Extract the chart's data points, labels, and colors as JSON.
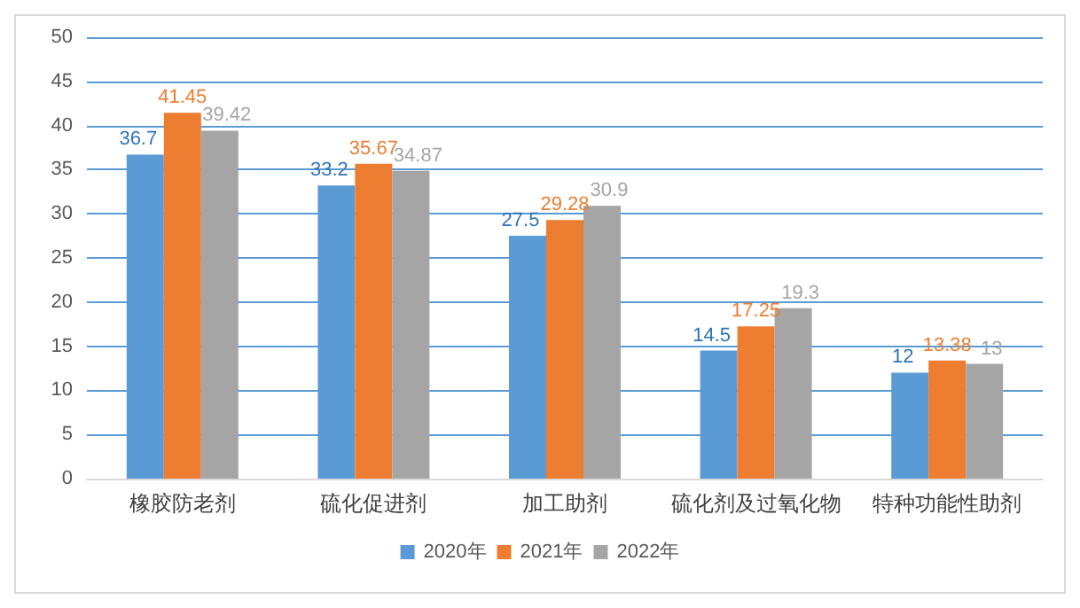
{
  "chart_data": {
    "type": "bar",
    "categories": [
      "橡胶防老剂",
      "硫化促进剂",
      "加工助剂",
      "硫化剂及过氧化物",
      "特种功能性助剂"
    ],
    "series": [
      {
        "name": "2020年",
        "color": "#5b9bd5",
        "values": [
          36.7,
          33.2,
          27.5,
          14.5,
          12
        ]
      },
      {
        "name": "2021年",
        "color": "#ed7d31",
        "values": [
          41.45,
          35.67,
          29.28,
          17.25,
          13.38
        ]
      },
      {
        "name": "2022年",
        "color": "#a5a5a5",
        "values": [
          39.42,
          34.87,
          30.9,
          19.3,
          13
        ]
      }
    ],
    "ylim": [
      0,
      50
    ],
    "yticks": [
      0,
      5,
      10,
      15,
      20,
      25,
      30,
      35,
      40,
      45,
      50
    ],
    "grid": "y",
    "legend": "bottom",
    "data_labels": true
  }
}
